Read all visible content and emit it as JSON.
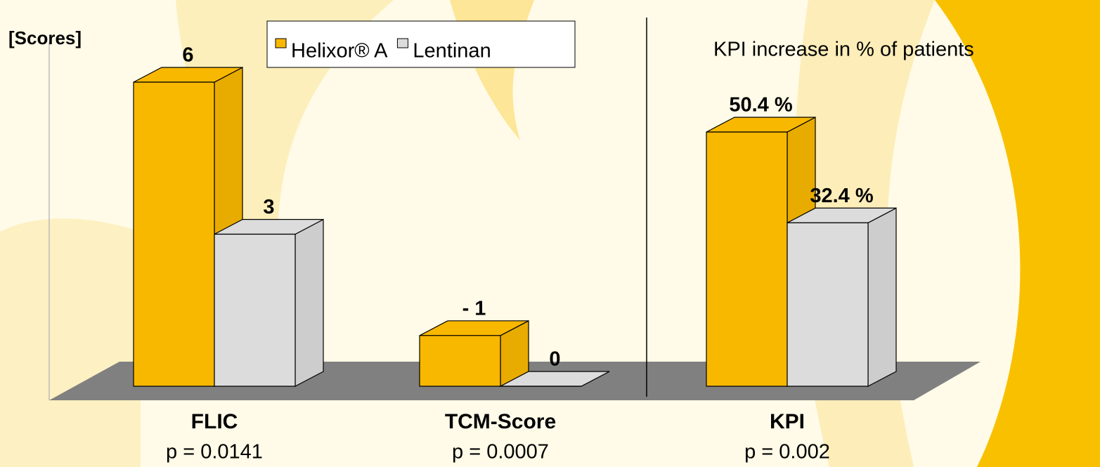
{
  "chart_data": {
    "type": "bar3d",
    "annotations": [
      "[Scores]",
      "KPI increase in % of patients"
    ],
    "categories": [
      "FLIC",
      "TCM-Score",
      "KPI"
    ],
    "category_notes": [
      "p = 0.0141",
      "p = 0.0007",
      "p = 0.002"
    ],
    "series": [
      {
        "name": "Helixor® A",
        "color": "#f9b800",
        "values": [
          6,
          -1,
          50.4
        ],
        "value_labels": [
          "6",
          "- 1",
          "50.4 %"
        ]
      },
      {
        "name": "Lentinan",
        "color": "#dcdcdc",
        "values": [
          3,
          0,
          32.4
        ],
        "value_labels": [
          "3",
          "0",
          "32.4 %"
        ]
      }
    ],
    "legend": "top"
  }
}
